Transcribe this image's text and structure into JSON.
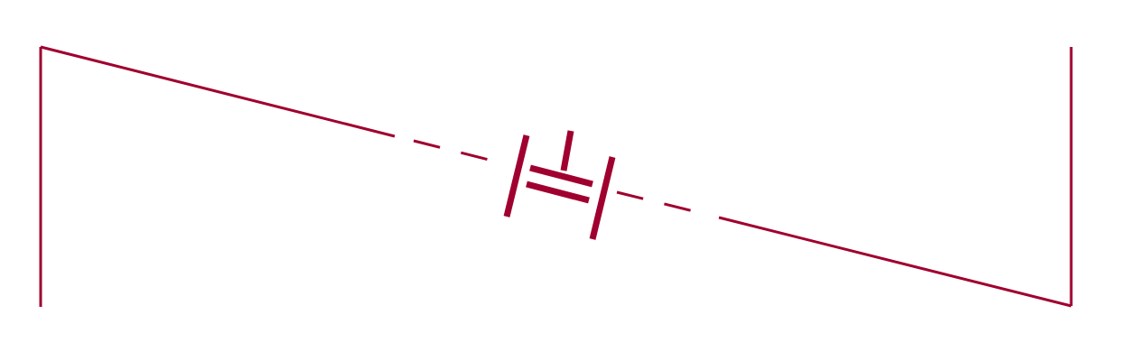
{
  "diagram": {
    "stroke_color": "#a0002f",
    "background": "#ffffff",
    "components": [
      {
        "type": "wire",
        "name": "left-vertical-wire"
      },
      {
        "type": "wire",
        "name": "upper-diagonal-wire"
      },
      {
        "type": "dashed-wire",
        "name": "left-dashed-wire"
      },
      {
        "type": "symbol",
        "name": "mosfet-symbol"
      },
      {
        "type": "dashed-wire",
        "name": "right-dashed-wire"
      },
      {
        "type": "wire",
        "name": "lower-diagonal-wire"
      },
      {
        "type": "wire",
        "name": "right-vertical-wire"
      }
    ]
  }
}
